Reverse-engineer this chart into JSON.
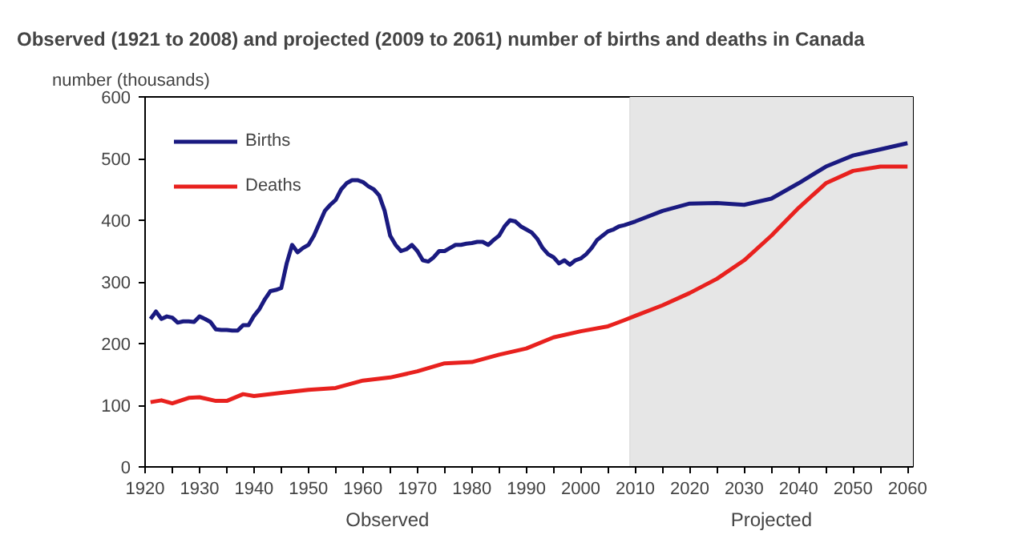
{
  "chart_data": {
    "type": "line",
    "title": "Observed (1921 to 2008) and projected (2009 to 2061) number of births and deaths in Canada",
    "ylabel": "number (thousands)",
    "xlim": [
      1920,
      2061
    ],
    "ylim": [
      0,
      600
    ],
    "xticks": [
      1920,
      {
        "value": 1925,
        "label": null
      },
      1930,
      {
        "value": 1935,
        "label": null
      },
      1940,
      {
        "value": 1945,
        "label": null
      },
      1950,
      {
        "value": 1955,
        "label": null
      },
      1960,
      {
        "value": 1965,
        "label": null
      },
      1970,
      {
        "value": 1975,
        "label": null
      },
      1980,
      {
        "value": 1985,
        "label": null
      },
      1990,
      {
        "value": 1995,
        "label": null
      },
      2000,
      {
        "value": 2005,
        "label": null
      },
      2010,
      {
        "value": 2015,
        "label": null
      },
      2020,
      {
        "value": 2025,
        "label": null
      },
      2030,
      {
        "value": 2035,
        "label": null
      },
      2040,
      {
        "value": 2045,
        "label": null
      },
      2050,
      {
        "value": 2055,
        "label": null
      },
      2060
    ],
    "yticks": [
      0,
      100,
      200,
      300,
      400,
      500,
      600
    ],
    "grid": false,
    "legend": "top left",
    "line_style": "solid",
    "marker": "none",
    "bands": [
      {
        "axis": "x",
        "from": 2009,
        "to": 2061,
        "label": "Projected",
        "color": "#e6e6e6"
      }
    ],
    "annotations": [
      "Observed"
    ],
    "series": [
      {
        "name": "Births",
        "color": "#1a1a80",
        "x": [
          1921,
          1922,
          1923,
          1924,
          1925,
          1926,
          1927,
          1928,
          1929,
          1930,
          1931,
          1932,
          1933,
          1934,
          1935,
          1936,
          1937,
          1938,
          1939,
          1940,
          1941,
          1942,
          1943,
          1944,
          1945,
          1946,
          1947,
          1948,
          1949,
          1950,
          1951,
          1952,
          1953,
          1954,
          1955,
          1956,
          1957,
          1958,
          1959,
          1960,
          1961,
          1962,
          1963,
          1964,
          1965,
          1966,
          1967,
          1968,
          1969,
          1970,
          1971,
          1972,
          1973,
          1974,
          1975,
          1976,
          1977,
          1978,
          1979,
          1980,
          1981,
          1982,
          1983,
          1984,
          1985,
          1986,
          1987,
          1988,
          1989,
          1990,
          1991,
          1992,
          1993,
          1994,
          1995,
          1996,
          1997,
          1998,
          1999,
          2000,
          2001,
          2002,
          2003,
          2004,
          2005,
          2006,
          2007,
          2008,
          2010,
          2015,
          2020,
          2025,
          2030,
          2035,
          2040,
          2045,
          2050,
          2055,
          2060
        ],
        "values": [
          240,
          252,
          240,
          244,
          242,
          234,
          236,
          236,
          235,
          244,
          240,
          235,
          223,
          222,
          222,
          221,
          221,
          230,
          230,
          245,
          256,
          272,
          285,
          287,
          290,
          330,
          360,
          348,
          355,
          360,
          375,
          395,
          415,
          425,
          433,
          450,
          460,
          465,
          465,
          462,
          455,
          450,
          440,
          415,
          375,
          360,
          350,
          353,
          360,
          350,
          335,
          333,
          340,
          350,
          350,
          355,
          360,
          360,
          362,
          363,
          365,
          365,
          360,
          368,
          375,
          390,
          400,
          398,
          390,
          385,
          380,
          370,
          355,
          345,
          340,
          330,
          335,
          328,
          335,
          338,
          345,
          355,
          368,
          375,
          382,
          385,
          390,
          392,
          398,
          415,
          427,
          428,
          425,
          435,
          460,
          487,
          505,
          515,
          525
        ]
      },
      {
        "name": "Deaths",
        "color": "#e8211e",
        "x": [
          1921,
          1923,
          1925,
          1928,
          1930,
          1933,
          1935,
          1938,
          1940,
          1945,
          1950,
          1955,
          1960,
          1965,
          1970,
          1975,
          1980,
          1985,
          1990,
          1995,
          2000,
          2005,
          2008,
          2010,
          2015,
          2020,
          2025,
          2030,
          2035,
          2040,
          2045,
          2050,
          2055,
          2060
        ],
        "values": [
          105,
          108,
          103,
          112,
          113,
          107,
          107,
          118,
          115,
          120,
          125,
          128,
          140,
          145,
          155,
          168,
          170,
          182,
          192,
          210,
          220,
          228,
          238,
          245,
          262,
          282,
          305,
          335,
          375,
          420,
          460,
          480,
          487,
          487
        ]
      }
    ]
  }
}
